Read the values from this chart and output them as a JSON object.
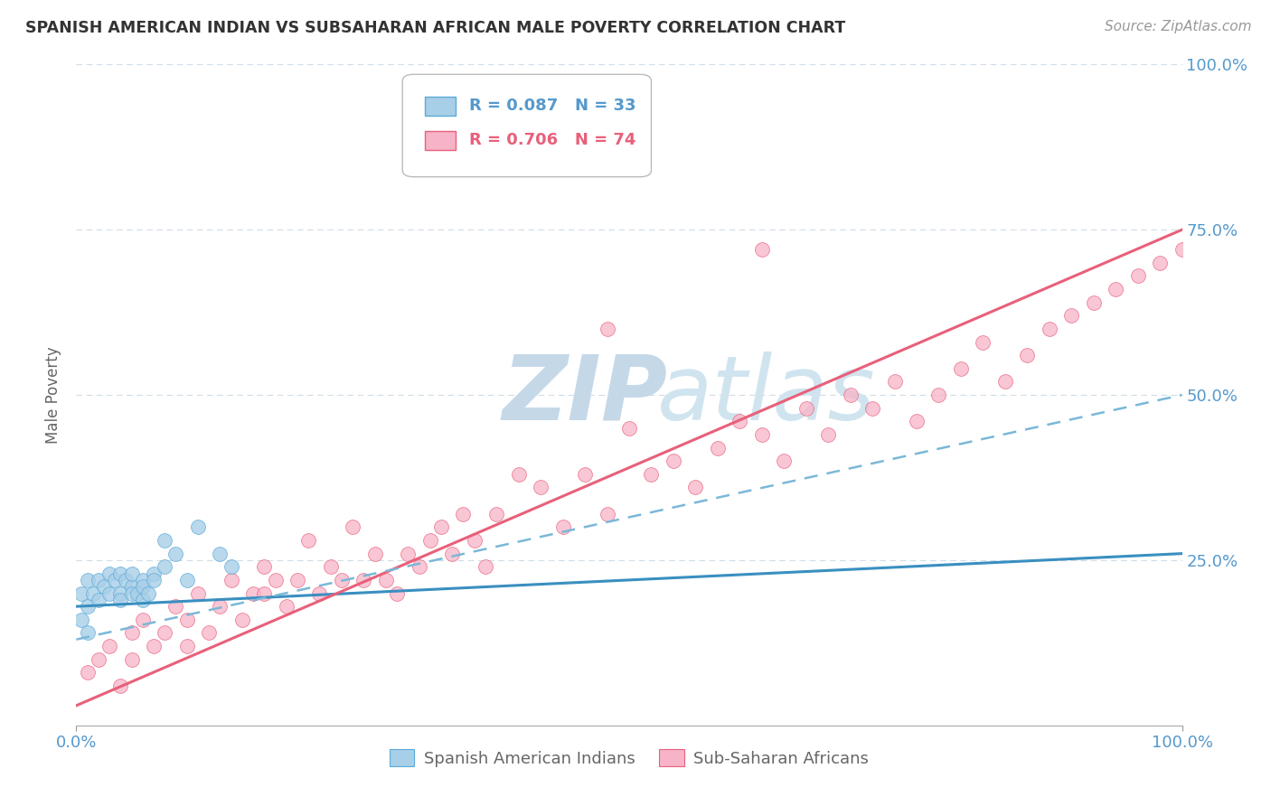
{
  "title": "SPANISH AMERICAN INDIAN VS SUBSAHARAN AFRICAN MALE POVERTY CORRELATION CHART",
  "source": "Source: ZipAtlas.com",
  "ylabel": "Male Poverty",
  "legend_labels": [
    "Spanish American Indians",
    "Sub-Saharan Africans"
  ],
  "r1": 0.087,
  "n1": 33,
  "r2": 0.706,
  "n2": 74,
  "color_blue": "#a8cfe8",
  "color_pink": "#f7b3c8",
  "color_blue_line": "#5baad8",
  "color_pink_line": "#e8607a",
  "blue_points_x": [
    0.5,
    1,
    1,
    1.5,
    2,
    2,
    2.5,
    3,
    3,
    3.5,
    4,
    4,
    4,
    4.5,
    5,
    5,
    5,
    5.5,
    6,
    6,
    6,
    6.5,
    7,
    7,
    8,
    8,
    9,
    10,
    11,
    13,
    14,
    0.5,
    1
  ],
  "blue_points_y": [
    20,
    18,
    22,
    20,
    19,
    22,
    21,
    20,
    23,
    22,
    20,
    23,
    19,
    22,
    21,
    20,
    23,
    20,
    22,
    19,
    21,
    20,
    23,
    22,
    28,
    24,
    26,
    22,
    30,
    26,
    24,
    16,
    14
  ],
  "pink_points_x": [
    1,
    2,
    3,
    4,
    5,
    5,
    6,
    7,
    8,
    9,
    10,
    10,
    11,
    12,
    13,
    14,
    15,
    16,
    17,
    17,
    18,
    19,
    20,
    21,
    22,
    23,
    24,
    25,
    26,
    27,
    28,
    29,
    30,
    31,
    32,
    33,
    34,
    35,
    36,
    37,
    38,
    40,
    42,
    44,
    46,
    48,
    50,
    52,
    54,
    56,
    58,
    60,
    62,
    64,
    66,
    68,
    70,
    72,
    74,
    76,
    78,
    80,
    82,
    84,
    86,
    88,
    90,
    92,
    94,
    96,
    98,
    100,
    48,
    62
  ],
  "pink_points_y": [
    8,
    10,
    12,
    6,
    14,
    10,
    16,
    12,
    14,
    18,
    12,
    16,
    20,
    14,
    18,
    22,
    16,
    20,
    24,
    20,
    22,
    18,
    22,
    28,
    20,
    24,
    22,
    30,
    22,
    26,
    22,
    20,
    26,
    24,
    28,
    30,
    26,
    32,
    28,
    24,
    32,
    38,
    36,
    30,
    38,
    32,
    45,
    38,
    40,
    36,
    42,
    46,
    44,
    40,
    48,
    44,
    50,
    48,
    52,
    46,
    50,
    54,
    58,
    52,
    56,
    60,
    62,
    64,
    66,
    68,
    70,
    72,
    60,
    72
  ],
  "blue_line": {
    "x0": 0,
    "x1": 100,
    "y0": 18,
    "y1": 26
  },
  "pink_line_solid": {
    "x0": 0,
    "x1": 100,
    "y0": 3,
    "y1": 75
  },
  "pink_dashed_line": {
    "x0": 0,
    "x1": 100,
    "y0": 13,
    "y1": 50
  },
  "xlim": [
    0,
    100
  ],
  "ylim": [
    0,
    100
  ],
  "yticks": [
    0,
    25,
    50,
    75,
    100
  ],
  "xticks": [
    0,
    100
  ],
  "grid_color": "#d0dde8",
  "watermark_zip_color": "#dde8f0",
  "watermark_atlas_color": "#c8dce8"
}
